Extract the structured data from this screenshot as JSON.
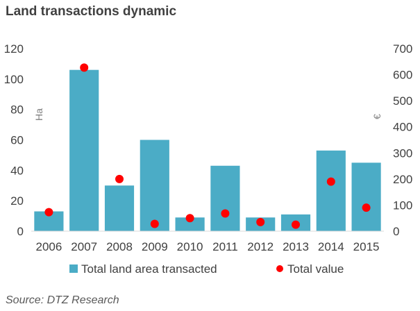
{
  "chart_data": {
    "type": "bar",
    "title": "Land transactions dynamic",
    "categories": [
      "2006",
      "2007",
      "2008",
      "2009",
      "2010",
      "2011",
      "2012",
      "2013",
      "2014",
      "2015"
    ],
    "series": [
      {
        "name": "Total land area transacted",
        "type": "bar",
        "axis": "left",
        "color": "#4bacc6",
        "values": [
          13,
          106,
          30,
          60,
          9,
          43,
          9,
          11,
          53,
          45
        ]
      },
      {
        "name": "Total value",
        "type": "scatter",
        "axis": "right",
        "color": "#ff0000",
        "values": [
          73,
          627,
          200,
          28,
          50,
          68,
          35,
          25,
          190,
          90
        ]
      }
    ],
    "yaxis_left": {
      "label": "Ha",
      "min": 0,
      "max": 120,
      "ticks": [
        0,
        20,
        40,
        60,
        80,
        100,
        120
      ]
    },
    "yaxis_right": {
      "label": "€",
      "min": 0,
      "max": 700,
      "ticks": [
        0,
        100,
        200,
        300,
        400,
        500,
        600,
        700
      ]
    },
    "grid": false,
    "legend_position": "bottom",
    "source": "Source: DTZ Research"
  }
}
